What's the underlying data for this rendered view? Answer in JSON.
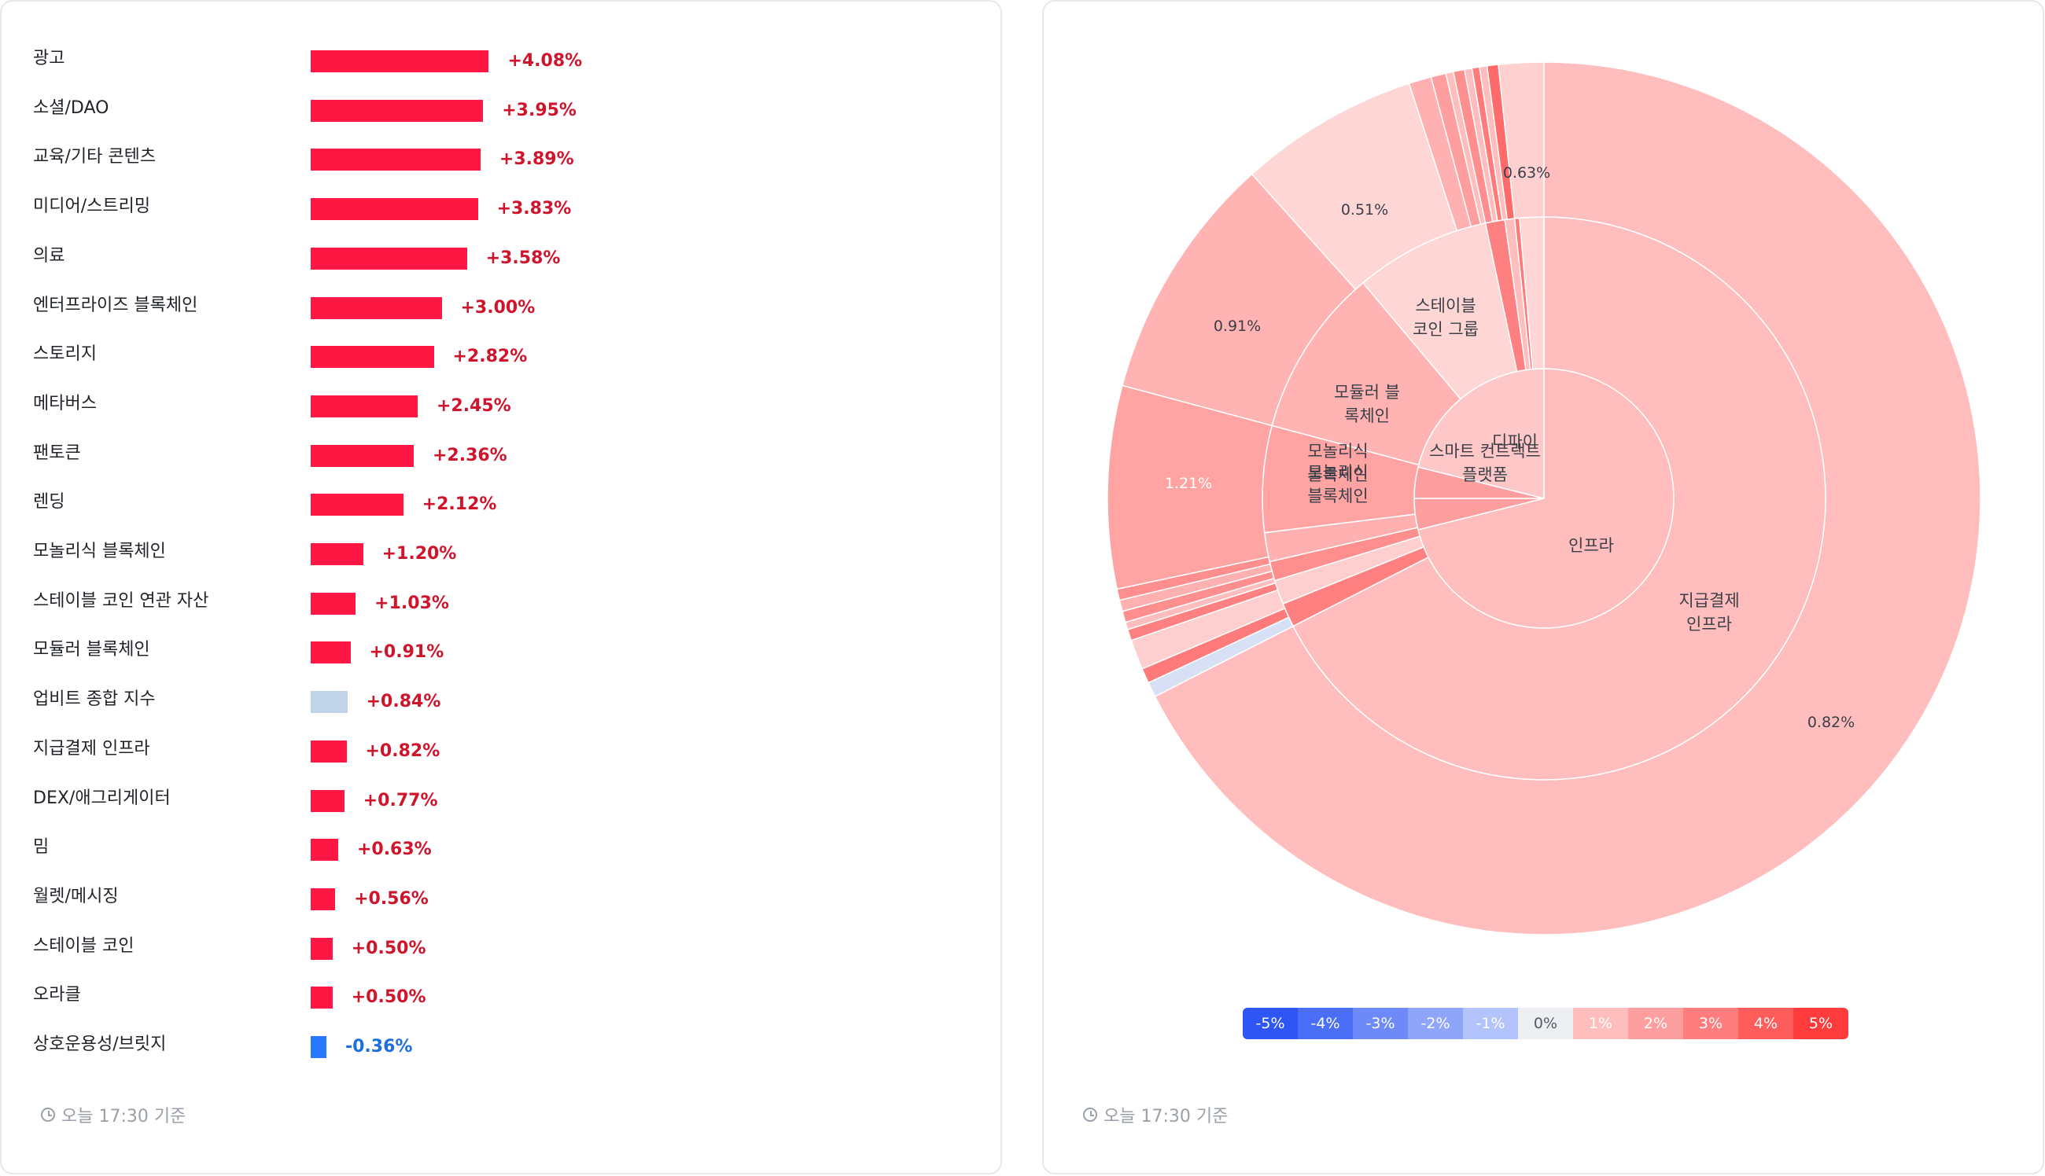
{
  "bar_panel": {
    "timestamp": "오늘 17:30 기준",
    "colors": {
      "positive_bar": "#ff1744",
      "positive_text": "#d0142c",
      "negative_bar": "#2979ff",
      "negative_text": "#1e6fd9",
      "neutral_bar": "#c1d3e6"
    }
  },
  "chart_data": [
    {
      "type": "bar",
      "orientation": "horizontal",
      "categories": [
        "광고",
        "소셜/DAO",
        "교육/기타 콘텐츠",
        "미디어/스트리밍",
        "의료",
        "엔터프라이즈 블록체인",
        "스토리지",
        "메타버스",
        "팬토큰",
        "렌딩",
        "모놀리식 블록체인",
        "스테이블 코인 연관 자산",
        "모듈러 블록체인",
        "업비트 종합 지수",
        "지급결제 인프라",
        "DEX/애그리게이터",
        "밈",
        "월렛/메시징",
        "스테이블 코인",
        "오라클",
        "상호운용성/브릿지"
      ],
      "values": [
        4.08,
        3.95,
        3.89,
        3.83,
        3.58,
        3.0,
        2.82,
        2.45,
        2.36,
        2.12,
        1.2,
        1.03,
        0.91,
        0.84,
        0.82,
        0.77,
        0.63,
        0.56,
        0.5,
        0.5,
        -0.36
      ],
      "value_labels": [
        "+4.08%",
        "+3.95%",
        "+3.89%",
        "+3.83%",
        "+3.58%",
        "+3.00%",
        "+2.82%",
        "+2.45%",
        "+2.36%",
        "+2.12%",
        "+1.20%",
        "+1.03%",
        "+0.91%",
        "+0.84%",
        "+0.82%",
        "+0.77%",
        "+0.63%",
        "+0.56%",
        "+0.50%",
        "+0.50%",
        "-0.36%"
      ],
      "highlight_neutral": "업비트 종합 지수"
    },
    {
      "type": "sunburst",
      "rings": {
        "inner": [
          {
            "label": "인프라",
            "color": "#ffbdbd",
            "start_deg": 0,
            "end_deg": 256
          },
          {
            "label": "모놀리식\n블록체인",
            "color": "#ff9e9e",
            "start_deg": 256,
            "end_deg": 270
          },
          {
            "label": "스마트 컨트랙트\n플랫폼",
            "color": "#ff9e9e",
            "start_deg": 270,
            "end_deg": 284
          },
          {
            "label": "디파이",
            "color": "#ffc8c8",
            "start_deg": 284,
            "end_deg": 360
          }
        ],
        "middle": [
          {
            "label": "지급결제\n인프라",
            "color": "#ffbdbd",
            "start_deg": 0,
            "end_deg": 243
          },
          {
            "label": "",
            "color": "#ff8080",
            "start_deg": 243,
            "end_deg": 248
          },
          {
            "label": "",
            "color": "#ffcfcf",
            "start_deg": 248,
            "end_deg": 253
          },
          {
            "label": "",
            "color": "#ff8f8f",
            "start_deg": 253,
            "end_deg": 257
          },
          {
            "label": "",
            "color": "#ffb0b0",
            "start_deg": 257,
            "end_deg": 263
          },
          {
            "label": "모놀리식\n블록체인",
            "color": "#ffa3a3",
            "start_deg": 263,
            "end_deg": 285
          },
          {
            "label": "모듈러 블\n록체인",
            "color": "#ffb3b3",
            "start_deg": 285,
            "end_deg": 320
          },
          {
            "label": "스테이블\n코인 그룹",
            "color": "#ffd6d6",
            "start_deg": 320,
            "end_deg": 348
          },
          {
            "label": "",
            "color": "#ff8080",
            "start_deg": 348,
            "end_deg": 352
          },
          {
            "label": "",
            "color": "#ffbdbd",
            "start_deg": 352,
            "end_deg": 354
          },
          {
            "label": "",
            "color": "#ff7a7a",
            "start_deg": 354,
            "end_deg": 355
          },
          {
            "label": "",
            "color": "#ffd6d6",
            "start_deg": 355,
            "end_deg": 360
          }
        ],
        "outer": [
          {
            "label": "0.82%",
            "color": "#ffbdbd",
            "start_deg": 0,
            "end_deg": 243
          },
          {
            "label": "",
            "color": "#d8e0f5",
            "start_deg": 243,
            "end_deg": 245
          },
          {
            "label": "",
            "color": "#ff7a7a",
            "start_deg": 245,
            "end_deg": 247
          },
          {
            "label": "",
            "color": "#ffcfcf",
            "start_deg": 247,
            "end_deg": 251
          },
          {
            "label": "",
            "color": "#ff8080",
            "start_deg": 251,
            "end_deg": 252.5
          },
          {
            "label": "",
            "color": "#ffbdbd",
            "start_deg": 252.5,
            "end_deg": 253.5
          },
          {
            "label": "",
            "color": "#ff8f8f",
            "start_deg": 253.5,
            "end_deg": 255
          },
          {
            "label": "",
            "color": "#ffb0b0",
            "start_deg": 255,
            "end_deg": 256.5
          },
          {
            "label": "",
            "color": "#ff8f8f",
            "start_deg": 256.5,
            "end_deg": 258
          },
          {
            "label": "1.21%",
            "color": "#ffa3a3",
            "start_deg": 258,
            "end_deg": 285
          },
          {
            "label": "0.91%",
            "color": "#ffb3b3",
            "start_deg": 285,
            "end_deg": 318
          },
          {
            "label": "0.51%",
            "color": "#ffd6d6",
            "start_deg": 318,
            "end_deg": 342
          },
          {
            "label": "",
            "color": "#ffb0b0",
            "start_deg": 342,
            "end_deg": 345
          },
          {
            "label": "",
            "color": "#ff9e9e",
            "start_deg": 345,
            "end_deg": 347
          },
          {
            "label": "",
            "color": "#ffbdbd",
            "start_deg": 347,
            "end_deg": 348
          },
          {
            "label": "",
            "color": "#ff8f8f",
            "start_deg": 348,
            "end_deg": 349.5
          },
          {
            "label": "",
            "color": "#ffbdbd",
            "start_deg": 349.5,
            "end_deg": 350.5
          },
          {
            "label": "",
            "color": "#ff7a7a",
            "start_deg": 350.5,
            "end_deg": 351.5
          },
          {
            "label": "",
            "color": "#ffbdbd",
            "start_deg": 351.5,
            "end_deg": 352.5
          },
          {
            "label": "",
            "color": "#ff6b6b",
            "start_deg": 352.5,
            "end_deg": 354
          },
          {
            "label": "0.63%",
            "color": "#ffd0d0",
            "start_deg": 354,
            "end_deg": 360
          }
        ]
      },
      "legend": {
        "labels": [
          "-5%",
          "-4%",
          "-3%",
          "-2%",
          "-1%",
          "0%",
          "1%",
          "2%",
          "3%",
          "4%",
          "5%"
        ],
        "colors": [
          "#2f55f5",
          "#4b6ef7",
          "#6d8af8",
          "#8fa5fa",
          "#b3c3fb",
          "#eeeff3",
          "#ffbdbd",
          "#ff9e9e",
          "#ff7d7d",
          "#ff5c5c",
          "#ff3b3b"
        ],
        "text_colors": [
          "#ffffff",
          "#ffffff",
          "#ffffff",
          "#ffffff",
          "#ffffff",
          "#555b66",
          "#ffffff",
          "#ffffff",
          "#ffffff",
          "#ffffff",
          "#ffffff"
        ]
      },
      "timestamp": "오늘 17:30 기준"
    }
  ]
}
